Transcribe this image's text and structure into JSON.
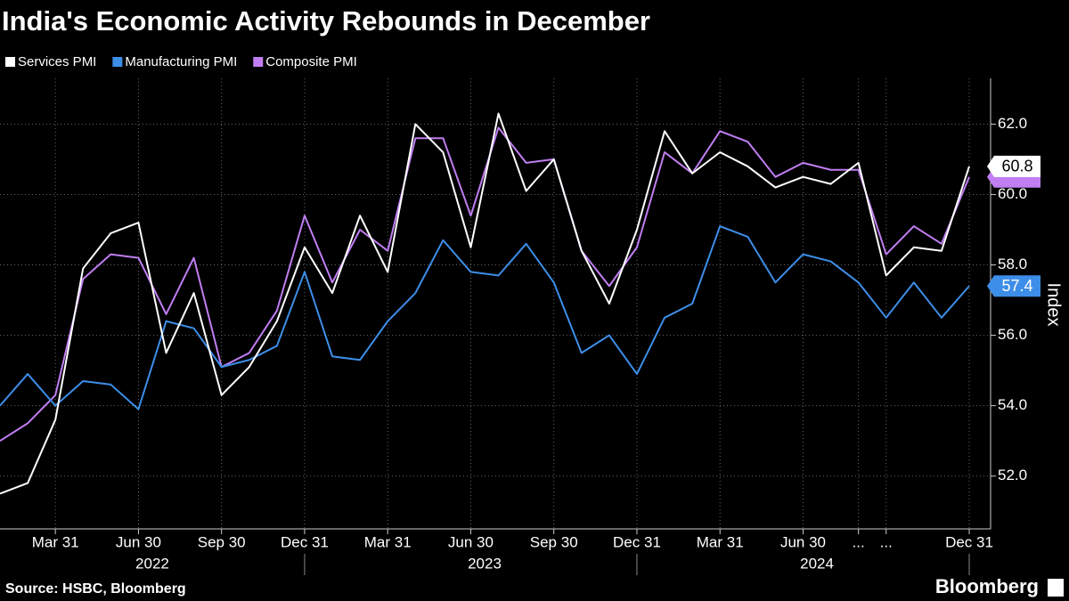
{
  "chart_data": {
    "type": "line",
    "title": "India's Economic Activity Rebounds in December",
    "y_label": "Index",
    "source": "Source: HSBC, Bloomberg",
    "brand": "Bloomberg",
    "categories": [
      null,
      null,
      "Mar 31",
      null,
      null,
      "Jun 30",
      null,
      null,
      "Sep 30",
      null,
      null,
      "Dec 31",
      null,
      null,
      "Mar 31",
      null,
      null,
      "Jun 30",
      null,
      null,
      "Sep 30",
      null,
      null,
      "Dec 31",
      null,
      null,
      "Mar 31",
      null,
      null,
      "Jun 30",
      null,
      "...",
      "...",
      null,
      null,
      "Dec 31"
    ],
    "years": [
      "2022",
      "2023",
      "2024"
    ],
    "series": [
      {
        "name": "Services PMI",
        "color": "#ffffff",
        "values": [
          51.5,
          51.8,
          53.6,
          57.9,
          58.9,
          59.2,
          55.5,
          57.2,
          54.3,
          55.1,
          56.4,
          58.5,
          57.2,
          59.4,
          57.8,
          62.0,
          61.2,
          58.5,
          62.3,
          60.1,
          61.0,
          58.4,
          56.9,
          59.0,
          61.8,
          60.6,
          61.2,
          60.8,
          60.2,
          60.5,
          60.3,
          60.9,
          57.7,
          58.5,
          58.4,
          60.8
        ]
      },
      {
        "name": "Manufacturing PMI",
        "color": "#3d8ee8",
        "values": [
          54.0,
          54.9,
          54.0,
          54.7,
          54.6,
          53.9,
          56.4,
          56.2,
          55.1,
          55.3,
          55.7,
          57.8,
          55.4,
          55.3,
          56.4,
          57.2,
          58.7,
          57.8,
          57.7,
          58.6,
          57.5,
          55.5,
          56.0,
          54.9,
          56.5,
          56.9,
          59.1,
          58.8,
          57.5,
          58.3,
          58.1,
          57.5,
          56.5,
          57.5,
          56.5,
          57.4
        ]
      },
      {
        "name": "Composite PMI",
        "color": "#c07ef2",
        "values": [
          53.0,
          53.5,
          54.3,
          57.6,
          58.3,
          58.2,
          56.6,
          58.2,
          55.1,
          55.5,
          56.7,
          59.4,
          57.5,
          59.0,
          58.4,
          61.6,
          61.6,
          59.4,
          61.9,
          60.9,
          61.0,
          58.4,
          57.4,
          58.5,
          61.2,
          60.6,
          61.8,
          61.5,
          60.5,
          60.9,
          60.7,
          60.7,
          58.3,
          59.1,
          58.6,
          60.5
        ]
      }
    ],
    "ylim": [
      50.5,
      63.3
    ],
    "yticks": [
      {
        "value": 52,
        "label": "52.0"
      },
      {
        "value": 54,
        "label": "54.0"
      },
      {
        "value": 56,
        "label": "56.0"
      },
      {
        "value": 58,
        "label": "58.0"
      },
      {
        "value": 60,
        "label": "60.0"
      },
      {
        "value": 62,
        "label": "62.0"
      }
    ],
    "grid": true
  }
}
